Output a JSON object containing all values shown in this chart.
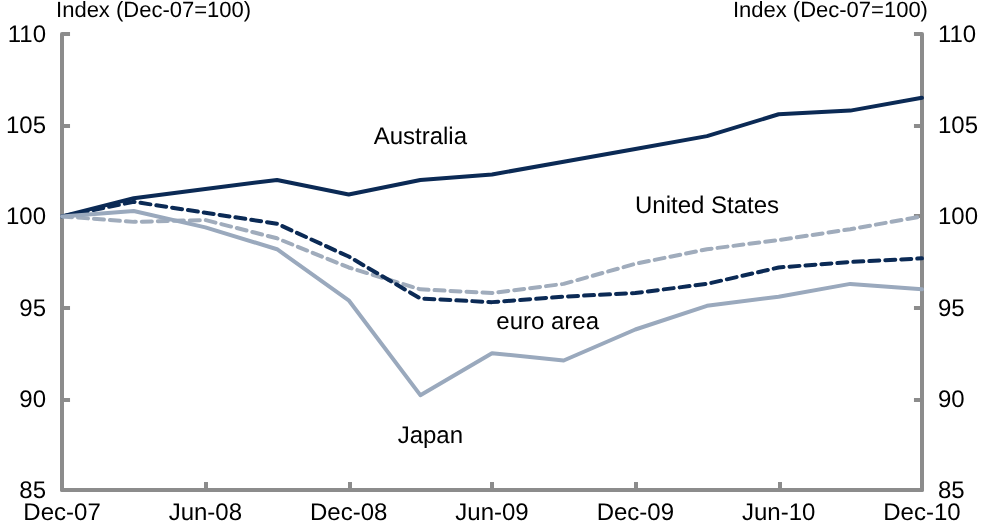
{
  "chart_data": {
    "type": "line",
    "ylabel": "Index (Dec-07=100)",
    "y2label": "Index (Dec-07=100)",
    "categories": [
      "Dec-07",
      null,
      "Jun-08",
      null,
      "Dec-08",
      null,
      "Jun-09",
      null,
      "Dec-09",
      null,
      "Jun-10",
      null,
      "Dec-10"
    ],
    "series": [
      {
        "name": "Australia",
        "color": "#0b2a55",
        "line_style": "solid",
        "values": [
          100,
          101.0,
          101.5,
          102.0,
          101.2,
          102.0,
          102.3,
          103.0,
          103.7,
          104.4,
          105.6,
          105.8,
          106.5
        ]
      },
      {
        "name": "United States",
        "color": "#a0acbc",
        "line_style": "dashed",
        "values": [
          100,
          99.7,
          99.8,
          98.8,
          97.2,
          96.0,
          95.8,
          96.3,
          97.4,
          98.2,
          98.7,
          99.3,
          100
        ]
      },
      {
        "name": "euro area",
        "color": "#0b2a55",
        "line_style": "dashed",
        "values": [
          100,
          100.8,
          100.2,
          99.6,
          97.8,
          95.5,
          95.3,
          95.6,
          95.8,
          96.3,
          97.2,
          97.5,
          97.7
        ]
      },
      {
        "name": "Japan",
        "color": "#9aa9bd",
        "line_style": "solid",
        "values": [
          100,
          100.3,
          99.4,
          98.2,
          95.4,
          90.2,
          92.5,
          92.1,
          93.8,
          95.1,
          95.6,
          96.3,
          96.0
        ]
      }
    ],
    "ylim": [
      85,
      110
    ],
    "yticks": [
      85,
      90,
      95,
      100,
      105,
      110
    ],
    "y2lim": [
      85,
      110
    ],
    "y2ticks": [
      85,
      90,
      95,
      100,
      105,
      110
    ],
    "grid": false,
    "legend": false,
    "marker": "none"
  }
}
